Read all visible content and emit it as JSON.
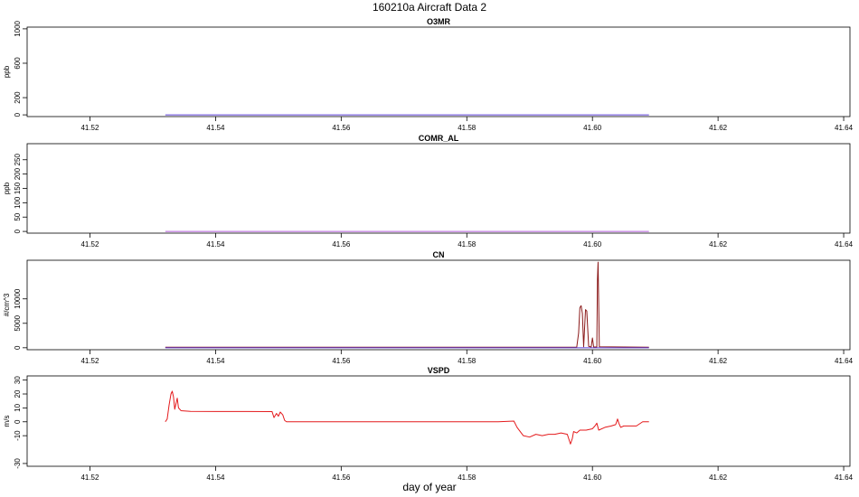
{
  "figure": {
    "title": "160210a   Aircraft Data 2",
    "xlabel": "day of year"
  },
  "chart_data": [
    {
      "type": "line",
      "title": "O3MR",
      "ylabel": "ppb",
      "xlim": [
        41.51,
        41.641
      ],
      "ylim": [
        -20,
        1020
      ],
      "xticks": [
        41.52,
        41.54,
        41.56,
        41.58,
        41.6,
        41.62,
        41.64
      ],
      "xtick_labels": [
        "41.52",
        "41.54",
        "41.56",
        "41.58",
        "41.60",
        "41.62",
        "41.64"
      ],
      "yticks": [
        0,
        200,
        600,
        1000
      ],
      "ytick_labels": [
        "0",
        "200",
        "600",
        "1000"
      ],
      "series": [
        {
          "color": "#5b3fd6",
          "points": [
            [
              41.532,
              0
            ],
            [
              41.609,
              0
            ]
          ]
        }
      ]
    },
    {
      "type": "line",
      "title": "COMR_AL",
      "ylabel": "ppb",
      "xlim": [
        41.51,
        41.641
      ],
      "ylim": [
        -6,
        306
      ],
      "xticks": [
        41.52,
        41.54,
        41.56,
        41.58,
        41.6,
        41.62,
        41.64
      ],
      "xtick_labels": [
        "41.52",
        "41.54",
        "41.56",
        "41.58",
        "41.60",
        "41.62",
        "41.64"
      ],
      "yticks": [
        0,
        50,
        100,
        150,
        200,
        250
      ],
      "ytick_labels": [
        "0",
        "50",
        "100",
        "150",
        "200",
        "250"
      ],
      "series": [
        {
          "color": "#b05ad8",
          "points": [
            [
              41.532,
              0
            ],
            [
              41.609,
              0
            ]
          ]
        }
      ]
    },
    {
      "type": "line",
      "title": "CN",
      "ylabel": "#/cm^3",
      "xlim": [
        41.51,
        41.641
      ],
      "ylim": [
        -400,
        17900
      ],
      "xticks": [
        41.52,
        41.54,
        41.56,
        41.58,
        41.6,
        41.62,
        41.64
      ],
      "xtick_labels": [
        "41.52",
        "41.54",
        "41.56",
        "41.58",
        "41.60",
        "41.62",
        "41.64"
      ],
      "yticks": [
        0,
        5000,
        10000
      ],
      "ytick_labels": [
        "0",
        "5000",
        "10000"
      ],
      "series": [
        {
          "color": "#8b1a1a",
          "points": [
            [
              41.532,
              100
            ],
            [
              41.5975,
              100
            ],
            [
              41.5978,
              3000
            ],
            [
              41.598,
              8200
            ],
            [
              41.5982,
              8600
            ],
            [
              41.5984,
              7000
            ],
            [
              41.5986,
              200
            ],
            [
              41.5989,
              7800
            ],
            [
              41.5991,
              7500
            ],
            [
              41.5994,
              300
            ],
            [
              41.5998,
              150
            ],
            [
              41.6,
              2000
            ],
            [
              41.6002,
              150
            ],
            [
              41.6007,
              150
            ],
            [
              41.6008,
              14000
            ],
            [
              41.6009,
              17500
            ],
            [
              41.6011,
              200
            ],
            [
              41.609,
              100
            ]
          ]
        },
        {
          "color": "#5b3fd6",
          "points": [
            [
              41.532,
              0
            ],
            [
              41.609,
              0
            ]
          ]
        }
      ]
    },
    {
      "type": "line",
      "title": "VSPD",
      "ylabel": "m/s",
      "xlim": [
        41.51,
        41.641
      ],
      "ylim": [
        -32,
        33
      ],
      "xticks": [
        41.52,
        41.54,
        41.56,
        41.58,
        41.6,
        41.62,
        41.64
      ],
      "xtick_labels": [
        "41.52",
        "41.54",
        "41.56",
        "41.58",
        "41.60",
        "41.62",
        "41.64"
      ],
      "yticks": [
        -30,
        -10,
        0,
        10,
        20,
        30
      ],
      "ytick_labels": [
        "-30",
        "-10",
        "0",
        "10",
        "20",
        "30"
      ],
      "series": [
        {
          "color": "#e41a1c",
          "points": [
            [
              41.532,
              0
            ],
            [
              41.5323,
              2
            ],
            [
              41.5326,
              12
            ],
            [
              41.5329,
              20
            ],
            [
              41.5331,
              22
            ],
            [
              41.5333,
              18
            ],
            [
              41.5335,
              9
            ],
            [
              41.5337,
              13
            ],
            [
              41.5339,
              17
            ],
            [
              41.5341,
              10
            ],
            [
              41.5345,
              8
            ],
            [
              41.536,
              7.5
            ],
            [
              41.54,
              7.4
            ],
            [
              41.545,
              7.4
            ],
            [
              41.549,
              7.3
            ],
            [
              41.5493,
              3
            ],
            [
              41.5497,
              6
            ],
            [
              41.55,
              4
            ],
            [
              41.5503,
              7
            ],
            [
              41.5507,
              5
            ],
            [
              41.551,
              1
            ],
            [
              41.5513,
              0
            ],
            [
              41.555,
              0
            ],
            [
              41.56,
              0
            ],
            [
              41.565,
              0
            ],
            [
              41.57,
              0
            ],
            [
              41.575,
              0
            ],
            [
              41.58,
              0
            ],
            [
              41.585,
              0
            ],
            [
              41.5875,
              0.5
            ],
            [
              41.588,
              -4
            ],
            [
              41.5885,
              -7
            ],
            [
              41.589,
              -10
            ],
            [
              41.59,
              -11
            ],
            [
              41.591,
              -9
            ],
            [
              41.592,
              -10
            ],
            [
              41.593,
              -9
            ],
            [
              41.594,
              -9
            ],
            [
              41.595,
              -8
            ],
            [
              41.596,
              -9
            ],
            [
              41.5965,
              -16
            ],
            [
              41.5968,
              -12
            ],
            [
              41.597,
              -7
            ],
            [
              41.5975,
              -8
            ],
            [
              41.598,
              -6
            ],
            [
              41.599,
              -6
            ],
            [
              41.6,
              -5
            ],
            [
              41.6004,
              -3
            ],
            [
              41.6007,
              -1
            ],
            [
              41.601,
              -6
            ],
            [
              41.602,
              -4
            ],
            [
              41.603,
              -3
            ],
            [
              41.6037,
              -2
            ],
            [
              41.604,
              2
            ],
            [
              41.6042,
              -1
            ],
            [
              41.6045,
              -4
            ],
            [
              41.605,
              -3
            ],
            [
              41.606,
              -3
            ],
            [
              41.607,
              -3
            ],
            [
              41.608,
              0
            ],
            [
              41.609,
              0
            ]
          ]
        }
      ]
    }
  ]
}
